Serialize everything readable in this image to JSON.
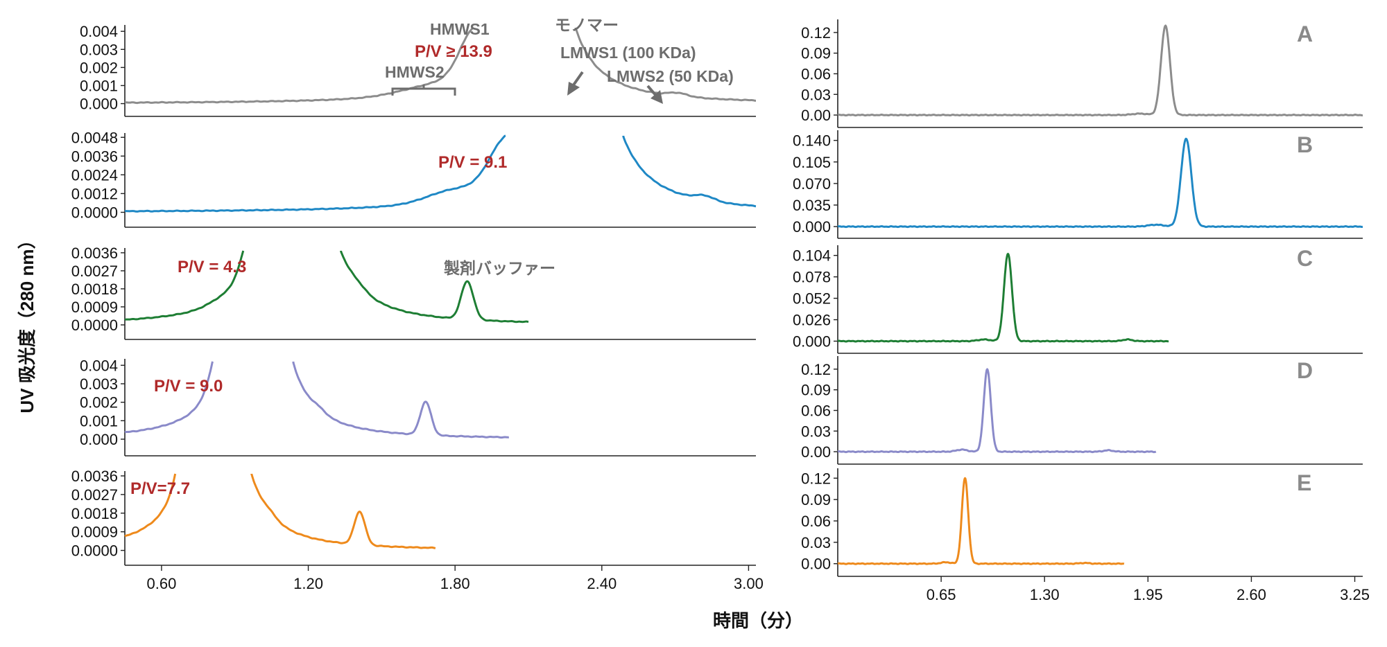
{
  "ylabel": "UV 吸光度（280 nm）",
  "xlabel": "時間（分）",
  "colors": {
    "A": "#8c8c8c",
    "B": "#1f88c5",
    "C": "#1e7e34",
    "D": "#8a8ac9",
    "E": "#ee8a1c",
    "annotation_gray": "#6d6d6d",
    "annotation_red": "#b02a2a"
  },
  "panel_letters": [
    "A",
    "B",
    "C",
    "D",
    "E"
  ],
  "annotations": {
    "hmws1": "HMWS1",
    "monomer": "モノマー",
    "pv_a": "P/V ≥ 13.9",
    "hmws2": "HMWS2",
    "lmws1": "LMWS1 (100 KDa)",
    "lmws2": "LMWS2 (50 KDa)",
    "pv_b": "P/V = 9.1",
    "pv_c": "P/V = 4.3",
    "buffer": "製剤バッファー",
    "pv_d": "P/V = 9.0",
    "pv_e": "P/V=7.7"
  },
  "chart_data": [
    {
      "type": "line",
      "side": "left",
      "xlabel": "時間（分）",
      "ylabel": "UV 吸光度（280 nm）",
      "xlim": [
        0.45,
        3.03
      ],
      "xticks": [
        "0.60",
        "1.20",
        "1.80",
        "2.40",
        "3.00"
      ],
      "panels": [
        {
          "letter": "A",
          "ylim": [
            -0.0004,
            0.0042
          ],
          "yticks": [
            "0.000",
            "0.001",
            "0.002",
            "0.003",
            "0.004"
          ],
          "peaks": [
            [
              1.87,
              0.0019,
              0.055
            ],
            [
              1.68,
              0.0003,
              0.12
            ],
            [
              2.71,
              0.00018,
              0.04
            ]
          ],
          "main_peak": {
            "x": 2.12,
            "width": 0.14
          },
          "trace_end": 3.03,
          "tail": 0.00012,
          "annotations": [
            "HMWS1",
            "モノマー",
            "P/V ≥ 13.9",
            "HMWS2",
            "LMWS1 (100 KDa)",
            "LMWS2 (50 KDa)"
          ],
          "pv": "P/V ≥ 13.9"
        },
        {
          "letter": "B",
          "ylim": [
            -0.0006,
            0.0049
          ],
          "yticks": [
            "0.0000",
            "0.0012",
            "0.0024",
            "0.0036",
            "0.0048"
          ],
          "peaks": [
            [
              2.0,
              0.0023,
              0.065
            ],
            [
              1.78,
              0.0006,
              0.1
            ],
            [
              2.82,
              0.0003,
              0.04
            ]
          ],
          "main_peak": {
            "x": 2.29,
            "width": 0.16
          },
          "trace_end": 3.03,
          "tail": 0.00015,
          "pv": "P/V = 9.1"
        },
        {
          "letter": "C",
          "ylim": [
            -0.00045,
            0.0037
          ],
          "yticks": [
            "0.0000",
            "0.0009",
            "0.0018",
            "0.0027",
            "0.0036"
          ],
          "peaks": [
            [
              0.98,
              0.0022,
              0.045
            ],
            [
              0.85,
              0.0002,
              0.06
            ],
            [
              1.4,
              0.0002,
              0.035
            ],
            [
              1.85,
              0.0019,
              0.025
            ]
          ],
          "main_peak": {
            "x": 1.16,
            "width": 0.14
          },
          "trace_end": 2.1,
          "tail": 0.00012,
          "pv": "P/V = 4.3",
          "annotations": [
            "製剤バッファー"
          ]
        },
        {
          "letter": "D",
          "ylim": [
            -0.0006,
            0.0042
          ],
          "yticks": [
            "0.000",
            "0.001",
            "0.002",
            "0.003",
            "0.004"
          ],
          "peaks": [
            [
              0.86,
              0.0024,
              0.045
            ],
            [
              1.24,
              0.0002,
              0.03
            ],
            [
              1.68,
              0.0018,
              0.022
            ]
          ],
          "main_peak": {
            "x": 0.99,
            "width": 0.12
          },
          "trace_end": 2.02,
          "tail": 0.0001,
          "pv": "P/V = 9.0"
        },
        {
          "letter": "E",
          "ylim": [
            -0.00045,
            0.0037
          ],
          "yticks": [
            "0.0000",
            "0.0009",
            "0.0018",
            "0.0027",
            "0.0036"
          ],
          "peaks": [
            [
              0.72,
              0.0022,
              0.04
            ],
            [
              1.04,
              0.0002,
              0.03
            ],
            [
              1.41,
              0.0016,
              0.022
            ]
          ],
          "main_peak": {
            "x": 0.82,
            "width": 0.12
          },
          "trace_end": 1.72,
          "tail": 0.0001,
          "pv": "P/V=7.7"
        }
      ]
    },
    {
      "type": "line",
      "side": "right",
      "xlabel": "時間（分）",
      "xlim": [
        0.0,
        3.3
      ],
      "xticks": [
        "0.65",
        "1.30",
        "1.95",
        "2.60",
        "3.25"
      ],
      "panels": [
        {
          "letter": "A",
          "ylim": [
            -0.01,
            0.135
          ],
          "yticks": [
            "0.00",
            "0.03",
            "0.06",
            "0.09",
            "0.12"
          ],
          "peak": [
            2.06,
            0.13,
            0.028
          ],
          "minor": [
            [
              1.9,
              0.002,
              0.05
            ]
          ],
          "trace_end": 3.3
        },
        {
          "letter": "B",
          "ylim": [
            -0.01,
            0.152
          ],
          "yticks": [
            "0.000",
            "0.035",
            "0.070",
            "0.105",
            "0.140"
          ],
          "peak": [
            2.19,
            0.143,
            0.032
          ],
          "minor": [
            [
              2.0,
              0.003,
              0.05
            ]
          ],
          "trace_end": 3.3
        },
        {
          "letter": "C",
          "ylim": [
            -0.008,
            0.113
          ],
          "yticks": [
            "0.000",
            "0.026",
            "0.052",
            "0.078",
            "0.104"
          ],
          "peak": [
            1.07,
            0.106,
            0.025
          ],
          "minor": [
            [
              0.92,
              0.002,
              0.04
            ],
            [
              1.82,
              0.002,
              0.03
            ]
          ],
          "trace_end": 2.08
        },
        {
          "letter": "D",
          "ylim": [
            -0.01,
            0.135
          ],
          "yticks": [
            "0.00",
            "0.03",
            "0.06",
            "0.09",
            "0.12"
          ],
          "peak": [
            0.94,
            0.12,
            0.022
          ],
          "minor": [
            [
              0.78,
              0.003,
              0.035
            ],
            [
              1.7,
              0.002,
              0.03
            ]
          ],
          "trace_end": 2.0
        },
        {
          "letter": "E",
          "ylim": [
            -0.01,
            0.13
          ],
          "yticks": [
            "0.00",
            "0.03",
            "0.06",
            "0.09",
            "0.12"
          ],
          "peak": [
            0.8,
            0.12,
            0.02
          ],
          "minor": [
            [
              0.68,
              0.002,
              0.03
            ],
            [
              1.55,
              0.001,
              0.03
            ]
          ],
          "trace_end": 1.8
        }
      ]
    }
  ]
}
